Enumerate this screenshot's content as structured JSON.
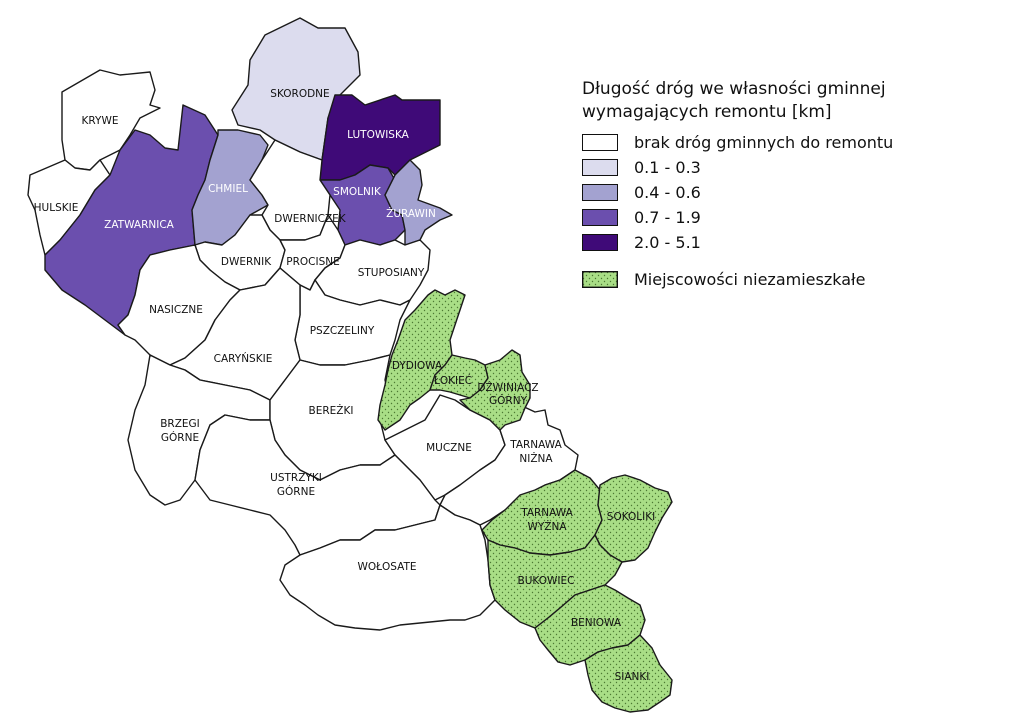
{
  "legend": {
    "title_line1": "Długość dróg we własności gminnej",
    "title_line2": "wymagających remontu [km]",
    "classes": [
      {
        "label": "brak dróg gminnych do remontu",
        "color": "#ffffff"
      },
      {
        "label": "0.1 - 0.3",
        "color": "#dcdcee"
      },
      {
        "label": "0.4 - 0.6",
        "color": "#a3a2d0"
      },
      {
        "label": "0.7 - 1.9",
        "color": "#6b4fae"
      },
      {
        "label": "2.0 - 5.1",
        "color": "#3f0a78"
      }
    ],
    "uninhabited": {
      "label": "Miejscowości niezamieszkałe",
      "color": "#a9de86",
      "pattern": "dots"
    }
  },
  "regions": {
    "krywe": "KRYWE",
    "hulskie": "HULSKIE",
    "skorodne": "SKORODNE",
    "lutowiska": "LUTOWISKA",
    "zatwarnica": "ZATWARNICA",
    "chmiel": "CHMIEL",
    "smolnik": "SMOLNIK",
    "zurawin": "ŻURAWIN",
    "dwerniczek": "DWERNICZEK",
    "dwernik": "DWERNIK",
    "procisne": "PROCISNE",
    "stuposiany": "STUPOSIANY",
    "nasiczne": "NASICZNE",
    "pszczeliny": "PSZCZELINY",
    "carynskie": "CARYŃSKIE",
    "dydiowa": "DYDIOWA",
    "lokiec": "ŁOKIEĆ",
    "dzwiniacz_1": "DŹWINIACZ",
    "dzwiniacz_2": "GÓRNY",
    "brzegi_1": "BRZEGI",
    "brzegi_2": "GÓRNE",
    "berezki": "BEREŻKI",
    "muczne": "MUCZNE",
    "tarnawa_nizna_1": "TARNAWA",
    "tarnawa_nizna_2": "NIŻNA",
    "ustrzyki_1": "USTRZYKI",
    "ustrzyki_2": "GÓRNE",
    "tarnawa_wyzna_1": "TARNAWA",
    "tarnawa_wyzna_2": "WYŻNA",
    "sokoliki": "SOKOLIKI",
    "bukowiec": "BUKOWIEC",
    "wolosate": "WOŁOSATE",
    "beniowa": "BENIOWA",
    "sianki": "SIANKI"
  }
}
